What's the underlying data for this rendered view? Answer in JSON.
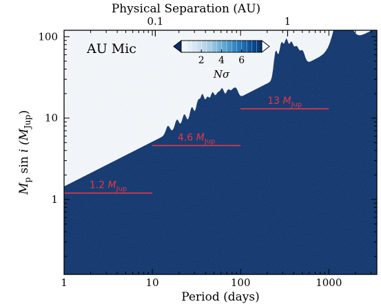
{
  "chart_data": {
    "type": "heatmap",
    "panel_label": "AU Mic",
    "xlabel": "Period (days)",
    "ylabel": {
      "main": "M",
      "sub": "p",
      "rest": " sin ",
      "i": "i",
      "open": " (M",
      "sub2": "Jup",
      "close": ")"
    },
    "top_axis_label": "Physical Separation (AU)",
    "x_scale": "log",
    "y_scale": "log",
    "xlim": [
      1,
      3500
    ],
    "ylim": [
      0.12,
      120
    ],
    "x_ticks": [
      {
        "value": 1,
        "label": "1"
      },
      {
        "value": 10,
        "label": "10"
      },
      {
        "value": 100,
        "label": "100"
      },
      {
        "value": 1000,
        "label": "1000"
      }
    ],
    "y_ticks": [
      {
        "value": 1,
        "label": "1"
      },
      {
        "value": 10,
        "label": "10"
      },
      {
        "value": 100,
        "label": "100"
      }
    ],
    "top_ticks": [
      {
        "value": 0.1,
        "label": "0.1",
        "period_days": 10.8
      },
      {
        "value": 1,
        "label": "1",
        "period_days": 341
      }
    ],
    "colorbar": {
      "label": "Nσ",
      "ticks": [
        {
          "value": 2,
          "label": "2"
        },
        {
          "value": 4,
          "label": "4"
        },
        {
          "value": 6,
          "label": "6"
        }
      ],
      "range": [
        0,
        8
      ],
      "extend": "both",
      "colors": [
        "#08306b",
        "#0b4d94",
        "#2171b5",
        "#4292c6",
        "#6baed6",
        "#9ecae1",
        "#c6dbef",
        "#deebf7",
        "#f7fbff"
      ]
    },
    "detection_limits": [
      {
        "label": "1.2",
        "unit_main": "M",
        "unit_sub": "Jup",
        "mass": 1.2,
        "period_range": [
          1,
          10
        ]
      },
      {
        "label": "4.6",
        "unit_main": "M",
        "unit_sub": "Jup",
        "mass": 4.6,
        "period_range": [
          10,
          100
        ]
      },
      {
        "label": "13",
        "unit_main": "M",
        "unit_sub": "Jup",
        "mass": 13,
        "period_range": [
          100,
          1000
        ]
      }
    ],
    "colors": {
      "limit_line": "#e8364a",
      "panel_label": "#000000"
    }
  }
}
